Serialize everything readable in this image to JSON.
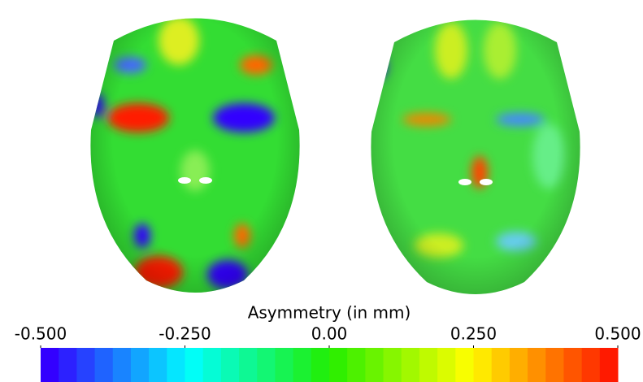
{
  "chart_data": {
    "type": "colorbar",
    "title": "Asymmetry (in mm)",
    "xlim": [
      -0.5,
      0.5
    ],
    "xticks": [
      {
        "value": -0.5,
        "label": "-0.500"
      },
      {
        "value": -0.25,
        "label": "-0.250"
      },
      {
        "value": 0,
        "label": "0.00"
      },
      {
        "value": 0.25,
        "label": "0.250"
      },
      {
        "value": 0.5,
        "label": "0.500"
      }
    ],
    "colors": [
      "#3300ff",
      "#00ffff",
      "#22ee00",
      "#ffff00",
      "#ff1a00"
    ],
    "steps": 32
  }
}
